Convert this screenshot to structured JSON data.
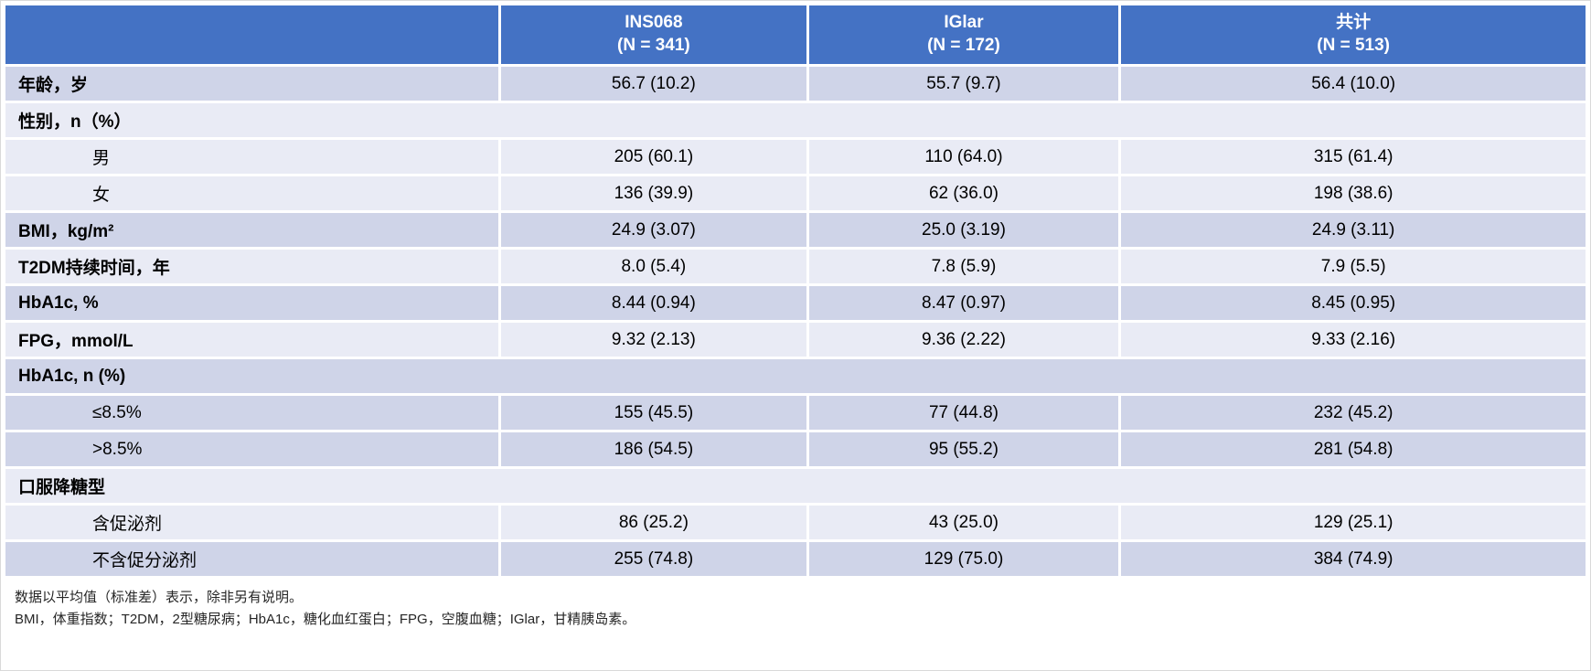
{
  "table": {
    "header": {
      "stub": "",
      "columns": [
        {
          "name": "INS068",
          "n": "(N = 341)"
        },
        {
          "name": "IGlar",
          "n": "(N = 172)"
        },
        {
          "name": "共计",
          "n": "(N = 513)"
        }
      ]
    },
    "rows": [
      {
        "label": "年龄，岁",
        "bold": true,
        "indent": false,
        "span": false,
        "shade": "dark",
        "values": [
          "56.7 (10.2)",
          "55.7 (9.7)",
          "56.4 (10.0)"
        ]
      },
      {
        "label": "性别，n（%）",
        "bold": true,
        "indent": false,
        "span": true,
        "shade": "light",
        "values": []
      },
      {
        "label": "男",
        "bold": false,
        "indent": true,
        "span": false,
        "shade": "light",
        "values": [
          "205 (60.1)",
          "110 (64.0)",
          "315 (61.4)"
        ]
      },
      {
        "label": "女",
        "bold": false,
        "indent": true,
        "span": false,
        "shade": "light",
        "values": [
          "136 (39.9)",
          "62 (36.0)",
          "198 (38.6)"
        ]
      },
      {
        "label": "BMI，kg/m²",
        "bold": true,
        "indent": false,
        "span": false,
        "shade": "dark",
        "values": [
          "24.9 (3.07)",
          "25.0 (3.19)",
          "24.9 (3.11)"
        ]
      },
      {
        "label": "T2DM持续时间，年",
        "bold": true,
        "indent": false,
        "span": false,
        "shade": "light",
        "values": [
          "8.0 (5.4)",
          "7.8 (5.9)",
          "7.9 (5.5)"
        ]
      },
      {
        "label": "HbA1c, %",
        "bold": true,
        "indent": false,
        "span": false,
        "shade": "dark",
        "values": [
          "8.44 (0.94)",
          "8.47 (0.97)",
          "8.45 (0.95)"
        ]
      },
      {
        "label": "FPG，mmol/L",
        "bold": true,
        "indent": false,
        "span": false,
        "shade": "light",
        "values": [
          "9.32 (2.13)",
          "9.36 (2.22)",
          "9.33 (2.16)"
        ]
      },
      {
        "label": "HbA1c, n (%)",
        "bold": true,
        "indent": false,
        "span": true,
        "shade": "dark",
        "values": []
      },
      {
        "label": "≤8.5%",
        "bold": false,
        "indent": true,
        "span": false,
        "shade": "dark",
        "values": [
          "155 (45.5)",
          "77 (44.8)",
          "232 (45.2)"
        ]
      },
      {
        "label": ">8.5%",
        "bold": false,
        "indent": true,
        "span": false,
        "shade": "dark",
        "values": [
          "186 (54.5)",
          "95 (55.2)",
          "281 (54.8)"
        ]
      },
      {
        "label": "口服降糖型",
        "bold": true,
        "indent": false,
        "span": true,
        "shade": "light",
        "values": []
      },
      {
        "label": "含促泌剂",
        "bold": false,
        "indent": true,
        "span": false,
        "shade": "light",
        "values": [
          "86 (25.2)",
          "43 (25.0)",
          "129 (25.1)"
        ]
      },
      {
        "label": "不含促分泌剂",
        "bold": false,
        "indent": true,
        "span": false,
        "shade": "dark",
        "values": [
          "255 (74.8)",
          "129 (75.0)",
          "384 (74.9)"
        ]
      }
    ]
  },
  "footnotes": {
    "line1": "数据以平均值（标准差）表示，除非另有说明。",
    "line2": "BMI，体重指数；T2DM，2型糖尿病；HbA1c，糖化血红蛋白；FPG，空腹血糖；IGlar，甘精胰岛素。"
  },
  "colors": {
    "header_bg": "#4472C4",
    "band_dark": "#CFD4E8",
    "band_light": "#E9EBF5",
    "header_text": "#FFFFFF",
    "body_text": "#000000"
  }
}
